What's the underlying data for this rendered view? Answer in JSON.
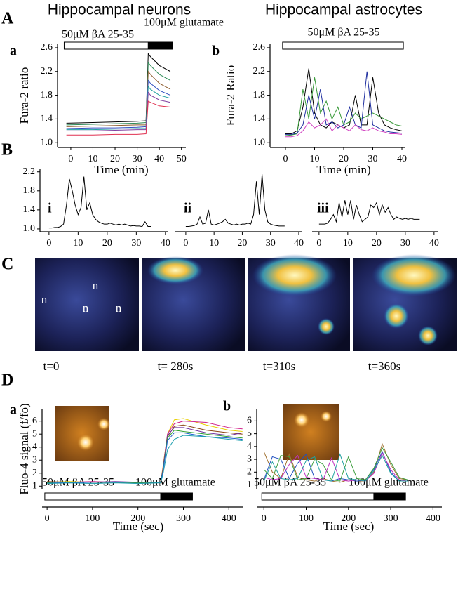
{
  "figure": {
    "headings": [
      "Hippocampal neurons",
      "Hippocampal astrocytes"
    ],
    "sections": [
      "A",
      "B",
      "C",
      "D"
    ],
    "images": {
      "times": [
        "t=0",
        "t= 280s",
        "t=310s",
        "t=360s"
      ],
      "markers": [
        "n",
        "n",
        "n",
        "n"
      ]
    }
  },
  "chart_data": [
    {
      "type": "line",
      "panel": "a",
      "xlabel": "Time (min)",
      "ylabel": "Fura-2 ratio",
      "x": [
        -2,
        10,
        20,
        30,
        34,
        35,
        36,
        40,
        45
      ],
      "xlim": [
        -6,
        52
      ],
      "xticks": [
        0,
        10,
        20,
        30,
        40,
        50
      ],
      "ylim": [
        0.92,
        2.67
      ],
      "yticks": [
        {
          "value": 1,
          "label": "1.0"
        },
        1.4,
        1.8,
        2.2,
        2.6
      ],
      "treatments": [
        {
          "label": "50μM βA 25-35",
          "start": -3,
          "end": 35,
          "color": "#ffffff"
        },
        {
          "label": "100μM glutamate",
          "start": 35,
          "end": 46,
          "color": "#000000"
        }
      ],
      "series": [
        {
          "color": "#000000",
          "values": [
            1.33,
            1.34,
            1.35,
            1.36,
            1.37,
            2.5,
            2.45,
            2.3,
            2.2
          ]
        },
        {
          "color": "#2e8b57",
          "values": [
            1.3,
            1.31,
            1.32,
            1.33,
            1.34,
            2.35,
            2.3,
            2.15,
            2.05
          ]
        },
        {
          "color": "#8b5a2b",
          "values": [
            1.27,
            1.28,
            1.29,
            1.3,
            1.3,
            2.2,
            2.15,
            2.0,
            1.9
          ]
        },
        {
          "color": "#3050c0",
          "values": [
            1.24,
            1.25,
            1.25,
            1.26,
            1.27,
            2.05,
            2.0,
            1.88,
            1.8
          ]
        },
        {
          "color": "#20a0a0",
          "values": [
            1.22,
            1.22,
            1.23,
            1.24,
            1.24,
            1.95,
            1.9,
            1.8,
            1.75
          ]
        },
        {
          "color": "#8040a0",
          "values": [
            1.2,
            1.2,
            1.21,
            1.22,
            1.22,
            1.85,
            1.8,
            1.72,
            1.68
          ]
        },
        {
          "color": "#e03050",
          "values": [
            1.13,
            1.13,
            1.14,
            1.14,
            1.15,
            1.7,
            1.68,
            1.62,
            1.6
          ]
        }
      ]
    },
    {
      "type": "line",
      "panel": "b",
      "xlabel": "Time (min)",
      "ylabel": "Fura-2 Ratio",
      "x": [
        0,
        2,
        4,
        6,
        8,
        10,
        12,
        14,
        16,
        18,
        20,
        22,
        24,
        26,
        28,
        30,
        32,
        34,
        36,
        38,
        40
      ],
      "xlim": [
        -5.3,
        41.2
      ],
      "xticks": [
        0,
        10,
        20,
        30,
        40
      ],
      "ylim": [
        0.92,
        2.67
      ],
      "yticks": [
        {
          "value": 1,
          "label": "1.0"
        },
        1.4,
        1.8,
        2.2,
        2.6
      ],
      "treatments": [
        {
          "label": "50μM βA 25-35",
          "start": -1,
          "end": 40.5,
          "color": "#ffffff"
        }
      ],
      "series": [
        {
          "color": "#000000",
          "values": [
            1.15,
            1.15,
            1.2,
            1.6,
            2.25,
            1.5,
            1.3,
            1.25,
            1.35,
            1.3,
            1.25,
            1.3,
            1.8,
            1.3,
            1.3,
            2.1,
            1.5,
            1.3,
            1.25,
            1.22,
            1.2
          ]
        },
        {
          "color": "#3a9a3a",
          "values": [
            1.12,
            1.13,
            1.15,
            1.9,
            1.4,
            2.1,
            1.5,
            1.7,
            1.4,
            1.6,
            1.3,
            1.35,
            1.5,
            1.4,
            1.45,
            1.5,
            1.45,
            1.4,
            1.35,
            1.3,
            1.28
          ]
        },
        {
          "color": "#2030a0",
          "values": [
            1.14,
            1.14,
            1.16,
            1.3,
            1.8,
            1.4,
            1.9,
            1.3,
            1.35,
            1.25,
            1.3,
            1.6,
            1.3,
            1.25,
            2.2,
            1.3,
            1.25,
            1.2,
            1.18,
            1.17,
            1.16
          ]
        },
        {
          "color": "#d040c0",
          "values": [
            1.1,
            1.1,
            1.12,
            1.2,
            1.35,
            1.25,
            1.3,
            1.4,
            1.2,
            1.3,
            1.25,
            1.2,
            1.3,
            1.22,
            1.2,
            1.25,
            1.2,
            1.18,
            1.15,
            1.15,
            1.14
          ]
        }
      ]
    },
    {
      "type": "line",
      "panel": "i",
      "x": [
        0,
        1,
        2,
        3,
        4,
        5,
        6,
        7,
        8,
        9,
        10,
        11,
        12,
        13,
        14,
        15,
        16,
        17,
        18,
        19,
        20,
        21,
        22,
        23,
        24,
        25,
        26,
        27,
        28,
        29,
        30,
        31,
        32,
        33,
        34,
        35
      ],
      "xlim": [
        -3.1,
        41
      ],
      "xticks": [
        0,
        10,
        20,
        30,
        40
      ],
      "ylim": [
        0.94,
        2.27
      ],
      "yticks": [
        {
          "value": 1,
          "label": "1.0"
        },
        1.4,
        1.8,
        2.2
      ],
      "series": [
        {
          "color": "#000000",
          "values": [
            1.02,
            1.02,
            1.03,
            1.03,
            1.05,
            1.1,
            1.5,
            2.05,
            1.8,
            1.5,
            1.3,
            1.45,
            2.1,
            1.4,
            1.55,
            1.3,
            1.2,
            1.15,
            1.12,
            1.1,
            1.1,
            1.12,
            1.1,
            1.08,
            1.1,
            1.08,
            1.1,
            1.08,
            1.06,
            1.07,
            1.06,
            1.06,
            1.05,
            1.15,
            1.05,
            1.05
          ]
        }
      ]
    },
    {
      "type": "line",
      "panel": "ii",
      "x": [
        0,
        1,
        2,
        3,
        4,
        5,
        6,
        7,
        8,
        9,
        10,
        11,
        12,
        13,
        14,
        15,
        16,
        17,
        18,
        19,
        20,
        21,
        22,
        23,
        24,
        25,
        26,
        27,
        28,
        29,
        30,
        31,
        32,
        33,
        34,
        35
      ],
      "xlim": [
        -3.7,
        41
      ],
      "xticks": [
        0,
        10,
        20,
        30,
        40
      ],
      "ylim": [
        0.94,
        2.27
      ],
      "series": [
        {
          "color": "#000000",
          "values": [
            1.05,
            1.05,
            1.06,
            1.07,
            1.1,
            1.25,
            1.1,
            1.12,
            1.4,
            1.1,
            1.08,
            1.1,
            1.12,
            1.15,
            1.2,
            1.12,
            1.1,
            1.08,
            1.1,
            1.08,
            1.1,
            1.1,
            1.12,
            1.1,
            1.3,
            2.0,
            1.3,
            2.15,
            1.4,
            1.15,
            1.1,
            1.08,
            1.07,
            1.06,
            1.06,
            1.06
          ]
        }
      ]
    },
    {
      "type": "line",
      "panel": "iii",
      "x": [
        0,
        1,
        2,
        3,
        4,
        5,
        6,
        7,
        8,
        9,
        10,
        11,
        12,
        13,
        14,
        15,
        16,
        17,
        18,
        19,
        20,
        21,
        22,
        23,
        24,
        25,
        26,
        27,
        28,
        29,
        30,
        31,
        32,
        33,
        34,
        35
      ],
      "xlim": [
        -2.4,
        41.5
      ],
      "xticks": [
        0,
        10,
        20,
        30,
        40
      ],
      "ylim": [
        0.94,
        2.27
      ],
      "series": [
        {
          "color": "#000000",
          "values": [
            1.1,
            1.1,
            1.1,
            1.12,
            1.2,
            1.3,
            1.15,
            1.55,
            1.25,
            1.6,
            1.3,
            1.6,
            1.2,
            1.5,
            1.3,
            1.15,
            1.2,
            1.25,
            1.5,
            1.45,
            1.55,
            1.3,
            1.5,
            1.35,
            1.45,
            1.3,
            1.2,
            1.25,
            1.22,
            1.2,
            1.22,
            1.2,
            1.22,
            1.2,
            1.2,
            1.2
          ]
        }
      ]
    },
    {
      "type": "line",
      "panel": "a",
      "xlabel": "Time (sec)",
      "ylabel": "Fluo-4 signal (f/fo)",
      "x": [
        0,
        50,
        100,
        150,
        200,
        250,
        255,
        265,
        280,
        300,
        350,
        400,
        430
      ],
      "xlim": [
        -11,
        432
      ],
      "xticks": [
        0,
        100,
        200,
        300,
        400
      ],
      "ylim": [
        0.8,
        6.9
      ],
      "yticks": [
        1,
        2,
        3,
        4,
        5,
        6
      ],
      "treatments": [
        {
          "label": "50μM βA 25-35",
          "start": -5,
          "end": 250,
          "color": "#ffffff"
        },
        {
          "label": "100μM glutamate",
          "start": 250,
          "end": 320,
          "color": "#000000"
        }
      ],
      "series": [
        {
          "color": "#e8d000",
          "values": [
            1.3,
            1.35,
            1.3,
            1.3,
            1.25,
            1.3,
            2.5,
            5.0,
            6.1,
            6.2,
            5.7,
            5.3,
            5.2
          ]
        },
        {
          "color": "#d0208a",
          "values": [
            1.3,
            1.3,
            1.35,
            1.3,
            1.3,
            1.3,
            2.4,
            5.0,
            5.8,
            6.0,
            5.9,
            5.5,
            5.4
          ]
        },
        {
          "color": "#8b4513",
          "values": [
            1.35,
            1.3,
            1.3,
            1.3,
            1.3,
            1.25,
            2.3,
            4.8,
            5.6,
            5.7,
            5.3,
            5.1,
            5.0
          ]
        },
        {
          "color": "#7030a0",
          "values": [
            1.3,
            1.3,
            1.3,
            1.35,
            1.3,
            1.3,
            2.3,
            4.9,
            5.5,
            5.5,
            5.1,
            4.9,
            5.1
          ]
        },
        {
          "color": "#30a030",
          "values": [
            1.25,
            1.3,
            1.3,
            1.3,
            1.25,
            1.3,
            2.2,
            4.7,
            5.3,
            5.2,
            5.0,
            4.8,
            4.7
          ]
        },
        {
          "color": "#2060d0",
          "values": [
            1.3,
            1.25,
            1.3,
            1.3,
            1.3,
            1.3,
            2.1,
            4.5,
            5.1,
            5.1,
            4.8,
            4.7,
            4.6
          ]
        },
        {
          "color": "#20a0b0",
          "values": [
            1.2,
            1.25,
            1.2,
            1.25,
            1.2,
            1.25,
            1.9,
            3.8,
            4.6,
            4.9,
            4.8,
            4.6,
            4.5
          ]
        }
      ]
    },
    {
      "type": "line",
      "panel": "b",
      "xlabel": "Time (sec)",
      "x": [
        0,
        20,
        40,
        60,
        80,
        100,
        120,
        140,
        160,
        180,
        200,
        220,
        240,
        260,
        280,
        300,
        320,
        340
      ],
      "xlim": [
        -17,
        421
      ],
      "xticks": [
        0,
        100,
        200,
        300,
        400
      ],
      "ylim": [
        0.7,
        6.9
      ],
      "yticks": [
        1,
        2,
        3,
        4,
        5,
        6
      ],
      "treatments": [
        {
          "label": "50μM βA 25-35",
          "start": -5,
          "end": 260,
          "color": "#ffffff"
        },
        {
          "label": "100μM glutamate",
          "start": 260,
          "end": 335,
          "color": "#000000"
        }
      ],
      "series": [
        {
          "color": "#a07030",
          "values": [
            3.6,
            2.0,
            1.5,
            3.4,
            1.6,
            1.4,
            1.3,
            1.5,
            1.3,
            1.2,
            1.4,
            1.3,
            1.3,
            2.0,
            4.2,
            2.6,
            1.5,
            1.4
          ]
        },
        {
          "color": "#2050c0",
          "values": [
            1.4,
            3.2,
            3.0,
            1.5,
            2.7,
            3.4,
            1.5,
            1.4,
            1.3,
            1.5,
            1.4,
            1.3,
            1.4,
            2.2,
            3.6,
            2.0,
            1.3,
            1.3
          ]
        },
        {
          "color": "#40a040",
          "values": [
            2.2,
            1.5,
            3.3,
            3.2,
            1.4,
            1.5,
            3.0,
            2.6,
            1.4,
            1.3,
            3.2,
            1.5,
            1.4,
            2.3,
            3.9,
            2.8,
            1.6,
            1.4
          ]
        },
        {
          "color": "#c030c0",
          "values": [
            1.6,
            1.4,
            1.5,
            2.6,
            3.3,
            1.6,
            1.5,
            1.4,
            3.1,
            1.4,
            1.3,
            1.4,
            1.3,
            1.9,
            3.5,
            2.2,
            1.4,
            1.3
          ]
        },
        {
          "color": "#20a0a0",
          "values": [
            1.3,
            2.8,
            1.5,
            1.4,
            1.5,
            2.9,
            3.2,
            1.4,
            1.3,
            3.4,
            1.5,
            1.4,
            1.3,
            2.1,
            3.3,
            1.9,
            1.3,
            1.3
          ]
        }
      ]
    }
  ]
}
